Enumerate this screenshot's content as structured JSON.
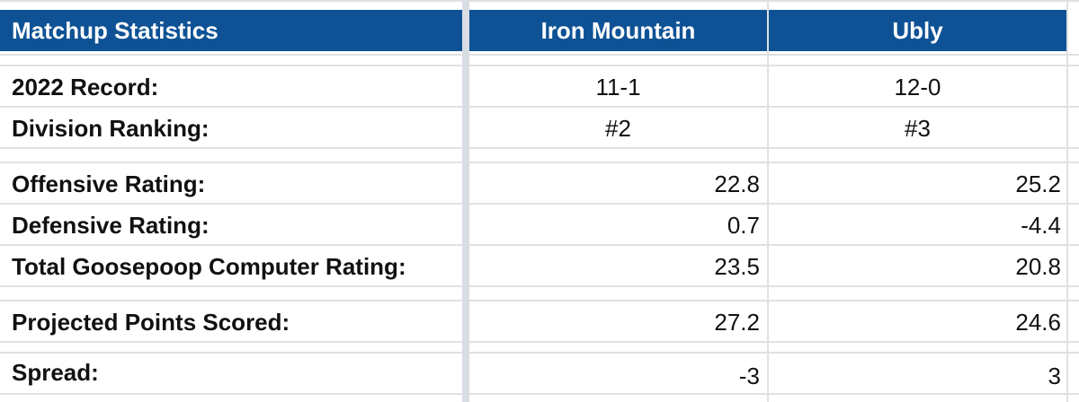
{
  "header": {
    "title": "Matchup Statistics",
    "team1": "Iron Mountain",
    "team2": "Ubly"
  },
  "rows": [
    {
      "label": "2022 Record:",
      "team1": "11-1",
      "team2": "12-0"
    },
    {
      "label": "Division Ranking:",
      "team1": "#2",
      "team2": "#3"
    },
    {
      "label": "Offensive Rating:",
      "team1": "22.8",
      "team2": "25.2"
    },
    {
      "label": "Defensive Rating:",
      "team1": "0.7",
      "team2": "-4.4"
    },
    {
      "label": "Total Goosepoop Computer Rating:",
      "team1": "23.5",
      "team2": "20.8"
    },
    {
      "label": "Projected Points Scored:",
      "team1": "27.2",
      "team2": "24.6"
    },
    {
      "label": "Spread:",
      "team1": "-3",
      "team2": "3"
    }
  ],
  "colors": {
    "header_bg": "#0e5295",
    "header_text": "#ffffff",
    "grid": "#e1e1e1"
  }
}
